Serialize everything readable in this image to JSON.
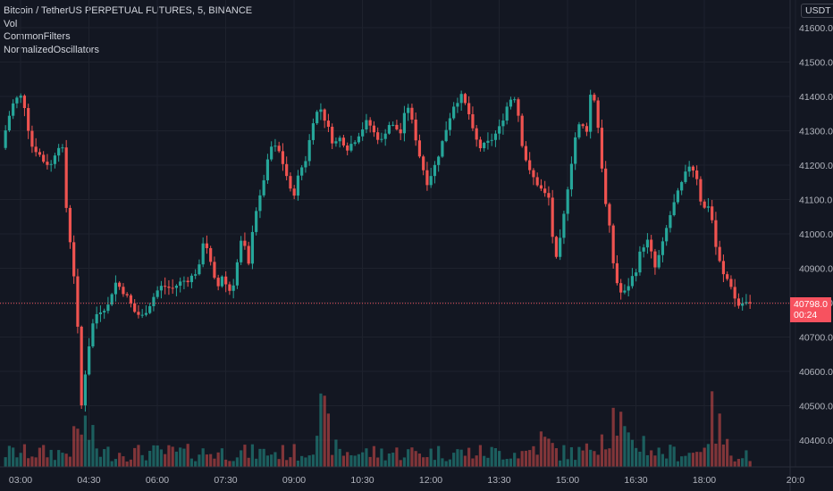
{
  "legend": {
    "title": "Bitcoin / TetherUS PERPETUAL FUTURES, 5, BINANCE",
    "indicators": [
      "Vol",
      "CommonFilters",
      "NormalizedOscillators"
    ]
  },
  "currency": "USDT",
  "last_price": {
    "value": "40798.0",
    "countdown": "00:24"
  },
  "colors": {
    "background": "#131722",
    "grid": "#1e222d",
    "up": "#26a69a",
    "down": "#ef5350",
    "axis_text": "#b2b5be",
    "price_line": "#f7525f"
  },
  "chart_data": {
    "type": "candlestick",
    "y_ticks": [
      "41600.0",
      "41500.0",
      "41400.0",
      "41300.0",
      "41200.0",
      "41100.0",
      "41000.0",
      "40900.0",
      "40800.0",
      "40700.0",
      "40600.0",
      "40500.0",
      "40400.0"
    ],
    "x_ticks": [
      "03:00",
      "04:30",
      "06:00",
      "07:30",
      "09:00",
      "10:30",
      "12:00",
      "13:30",
      "15:00",
      "16:30",
      "18:00",
      "20:0"
    ],
    "x_tick_hours": [
      3,
      4.5,
      6,
      7.5,
      9,
      10.5,
      12,
      13.5,
      15,
      16.5,
      18,
      20
    ],
    "ylim": [
      40330,
      41630
    ],
    "xlim": [
      2.65,
      20.15
    ],
    "candle_interval_minutes": 5,
    "first_candle_hour": 2.67,
    "last_price": 40798.0,
    "anchors": [
      [
        2.67,
        41250
      ],
      [
        2.8,
        41330
      ],
      [
        2.95,
        41390
      ],
      [
        3.1,
        41400
      ],
      [
        3.2,
        41360
      ],
      [
        3.3,
        41260
      ],
      [
        3.45,
        41240
      ],
      [
        3.6,
        41210
      ],
      [
        3.75,
        41200
      ],
      [
        3.9,
        41260
      ],
      [
        4.0,
        41250
      ],
      [
        4.1,
        41050
      ],
      [
        4.2,
        40950
      ],
      [
        4.3,
        40820
      ],
      [
        4.42,
        40500
      ],
      [
        4.55,
        40650
      ],
      [
        4.7,
        40760
      ],
      [
        4.85,
        40780
      ],
      [
        5.0,
        40790
      ],
      [
        5.15,
        40860
      ],
      [
        5.3,
        40840
      ],
      [
        5.45,
        40810
      ],
      [
        5.6,
        40770
      ],
      [
        5.75,
        40760
      ],
      [
        5.9,
        40790
      ],
      [
        6.05,
        40830
      ],
      [
        6.2,
        40850
      ],
      [
        6.4,
        40840
      ],
      [
        6.6,
        40860
      ],
      [
        6.8,
        40870
      ],
      [
        7.0,
        40900
      ],
      [
        7.1,
        40990
      ],
      [
        7.2,
        40950
      ],
      [
        7.3,
        40880
      ],
      [
        7.4,
        40840
      ],
      [
        7.5,
        40880
      ],
      [
        7.6,
        40850
      ],
      [
        7.7,
        40830
      ],
      [
        7.8,
        40880
      ],
      [
        7.9,
        40980
      ],
      [
        8.0,
        40960
      ],
      [
        8.1,
        40900
      ],
      [
        8.2,
        41060
      ],
      [
        8.3,
        41080
      ],
      [
        8.45,
        41180
      ],
      [
        8.6,
        41260
      ],
      [
        8.75,
        41240
      ],
      [
        8.9,
        41180
      ],
      [
        9.05,
        41100
      ],
      [
        9.2,
        41180
      ],
      [
        9.35,
        41220
      ],
      [
        9.5,
        41330
      ],
      [
        9.65,
        41370
      ],
      [
        9.8,
        41320
      ],
      [
        9.95,
        41260
      ],
      [
        10.1,
        41280
      ],
      [
        10.25,
        41250
      ],
      [
        10.4,
        41270
      ],
      [
        10.55,
        41300
      ],
      [
        10.7,
        41330
      ],
      [
        10.85,
        41290
      ],
      [
        11.0,
        41270
      ],
      [
        11.15,
        41320
      ],
      [
        11.3,
        41310
      ],
      [
        11.45,
        41290
      ],
      [
        11.55,
        41390
      ],
      [
        11.7,
        41310
      ],
      [
        11.85,
        41220
      ],
      [
        12.0,
        41150
      ],
      [
        12.15,
        41190
      ],
      [
        12.3,
        41250
      ],
      [
        12.45,
        41320
      ],
      [
        12.6,
        41380
      ],
      [
        12.75,
        41400
      ],
      [
        12.9,
        41360
      ],
      [
        13.0,
        41300
      ],
      [
        13.15,
        41250
      ],
      [
        13.3,
        41260
      ],
      [
        13.45,
        41280
      ],
      [
        13.6,
        41310
      ],
      [
        13.75,
        41370
      ],
      [
        13.9,
        41410
      ],
      [
        14.0,
        41350
      ],
      [
        14.1,
        41250
      ],
      [
        14.25,
        41180
      ],
      [
        14.4,
        41150
      ],
      [
        14.55,
        41120
      ],
      [
        14.7,
        41100
      ],
      [
        14.8,
        40900
      ],
      [
        14.95,
        41000
      ],
      [
        15.1,
        41150
      ],
      [
        15.25,
        41280
      ],
      [
        15.35,
        41320
      ],
      [
        15.5,
        41300
      ],
      [
        15.6,
        41420
      ],
      [
        15.7,
        41380
      ],
      [
        15.8,
        41250
      ],
      [
        15.9,
        41100
      ],
      [
        16.0,
        41020
      ],
      [
        16.1,
        40900
      ],
      [
        16.2,
        40840
      ],
      [
        16.3,
        40820
      ],
      [
        16.45,
        40860
      ],
      [
        16.6,
        40900
      ],
      [
        16.7,
        40960
      ],
      [
        16.85,
        40980
      ],
      [
        17.0,
        40900
      ],
      [
        17.15,
        40960
      ],
      [
        17.3,
        41040
      ],
      [
        17.45,
        41100
      ],
      [
        17.6,
        41150
      ],
      [
        17.75,
        41200
      ],
      [
        17.9,
        41180
      ],
      [
        18.0,
        41100
      ],
      [
        18.1,
        41070
      ],
      [
        18.2,
        41090
      ],
      [
        18.35,
        40950
      ],
      [
        18.5,
        40880
      ],
      [
        18.65,
        40860
      ],
      [
        18.8,
        40790
      ],
      [
        18.95,
        40800
      ],
      [
        19.05,
        40798
      ]
    ],
    "volume_peaks": [
      [
        4.38,
        3.0
      ],
      [
        9.6,
        3.6
      ],
      [
        14.45,
        1.9
      ],
      [
        15.75,
        2.6
      ],
      [
        16.05,
        3.9
      ],
      [
        16.6,
        1.9
      ],
      [
        18.2,
        3.5
      ]
    ]
  }
}
